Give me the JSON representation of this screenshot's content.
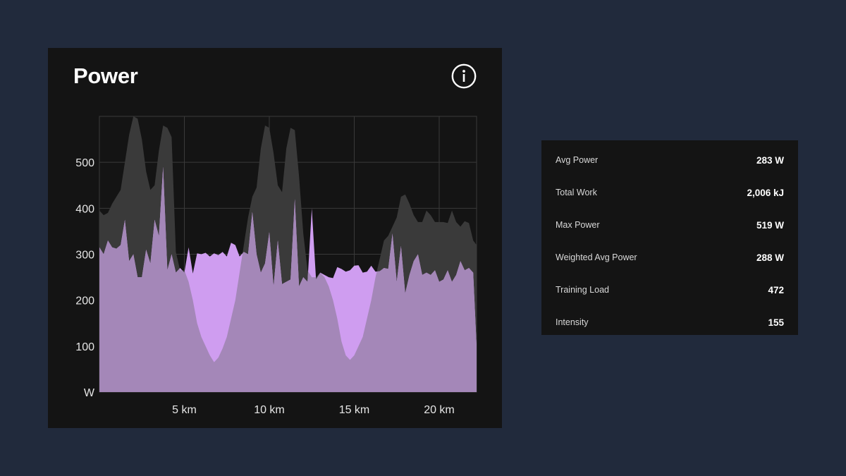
{
  "card": {
    "title": "Power"
  },
  "icons": {
    "info": "info-icon"
  },
  "colors": {
    "background": "#212a3c",
    "card": "#141414",
    "gray_area": "#3a3a3a",
    "purple_area": "#cf9df0",
    "overlap_area": "#a487b8",
    "grid": "#3a3a3a"
  },
  "chart_data": {
    "type": "area",
    "x_unit": "km",
    "y_unit": "W",
    "xlim": [
      0,
      22.2
    ],
    "ylim": [
      0,
      600
    ],
    "x_ticks": [
      5,
      10,
      15,
      20
    ],
    "x_tick_labels": [
      "5 km",
      "10 km",
      "15 km",
      "20 km"
    ],
    "y_ticks": [
      100,
      200,
      300,
      400,
      500
    ],
    "y_tick_labels": [
      "100",
      "200",
      "300",
      "400",
      "500"
    ],
    "y_origin_label": "W",
    "grid": true,
    "series": [
      {
        "x": [
          0,
          0.25,
          0.5,
          0.75,
          1.0,
          1.25,
          1.5,
          1.75,
          2.0,
          2.25,
          2.5,
          2.75,
          3.0,
          3.25,
          3.5,
          3.75,
          4.0,
          4.25,
          4.5,
          4.75,
          5.0,
          5.25,
          5.5,
          5.75,
          6.0,
          6.25,
          6.5,
          6.75,
          7.0,
          7.25,
          7.5,
          7.75,
          8.0,
          8.25,
          8.5,
          8.75,
          9.0,
          9.25,
          9.5,
          9.75,
          10.0,
          10.25,
          10.5,
          10.75,
          11.0,
          11.25,
          11.5,
          11.75,
          12.0,
          12.25,
          12.5,
          12.75,
          13.0,
          13.25,
          13.5,
          13.75,
          14.0,
          14.25,
          14.5,
          14.75,
          15.0,
          15.25,
          15.5,
          15.75,
          16.0,
          16.25,
          16.5,
          16.75,
          17.0,
          17.25,
          17.5,
          17.75,
          18.0,
          18.25,
          18.5,
          18.75,
          19.0,
          19.25,
          19.5,
          19.75,
          20.0,
          20.25,
          20.5,
          20.75,
          21.0,
          21.25,
          21.5,
          21.75,
          22.0,
          22.2
        ],
        "values": [
          395,
          385,
          390,
          410,
          425,
          440,
          500,
          560,
          600,
          595,
          550,
          480,
          440,
          450,
          525,
          580,
          575,
          555,
          305,
          265,
          265,
          240,
          200,
          150,
          120,
          100,
          80,
          65,
          75,
          95,
          120,
          160,
          200,
          260,
          320,
          380,
          425,
          445,
          530,
          580,
          575,
          520,
          450,
          435,
          530,
          575,
          570,
          470,
          345,
          265,
          250,
          250,
          260,
          250,
          230,
          200,
          160,
          110,
          80,
          70,
          80,
          100,
          120,
          160,
          200,
          250,
          290,
          330,
          340,
          360,
          380,
          425,
          430,
          410,
          385,
          370,
          370,
          395,
          385,
          370,
          370,
          370,
          368,
          395,
          370,
          360,
          372,
          368,
          330,
          320
        ],
        "color": "#3a3a3a"
      },
      {
        "x": [
          0,
          0.25,
          0.5,
          0.75,
          1.0,
          1.25,
          1.5,
          1.75,
          2.0,
          2.25,
          2.5,
          2.75,
          3.0,
          3.25,
          3.5,
          3.75,
          4.0,
          4.25,
          4.5,
          4.75,
          5.0,
          5.25,
          5.5,
          5.75,
          6.0,
          6.25,
          6.5,
          6.75,
          7.0,
          7.25,
          7.5,
          7.75,
          8.0,
          8.25,
          8.5,
          8.75,
          9.0,
          9.25,
          9.5,
          9.75,
          10.0,
          10.25,
          10.5,
          10.75,
          11.0,
          11.25,
          11.5,
          11.75,
          12.0,
          12.25,
          12.5,
          12.75,
          13.0,
          13.25,
          13.5,
          13.75,
          14.0,
          14.25,
          14.5,
          14.75,
          15.0,
          15.25,
          15.5,
          15.75,
          16.0,
          16.25,
          16.5,
          16.75,
          17.0,
          17.25,
          17.5,
          17.75,
          18.0,
          18.25,
          18.5,
          18.75,
          19.0,
          19.25,
          19.5,
          19.75,
          20.0,
          20.25,
          20.5,
          20.75,
          21.0,
          21.25,
          21.5,
          21.75,
          22.0,
          22.2
        ],
        "values": [
          315,
          300,
          330,
          315,
          312,
          320,
          375,
          285,
          300,
          250,
          250,
          310,
          280,
          375,
          340,
          490,
          265,
          300,
          260,
          270,
          260,
          315,
          258,
          302,
          300,
          303,
          295,
          302,
          298,
          305,
          295,
          325,
          320,
          295,
          305,
          300,
          392,
          300,
          260,
          280,
          348,
          230,
          330,
          235,
          240,
          245,
          420,
          230,
          250,
          240,
          400,
          245,
          260,
          255,
          250,
          248,
          272,
          268,
          262,
          265,
          275,
          276,
          260,
          262,
          275,
          262,
          263,
          270,
          268,
          345,
          240,
          318,
          215,
          255,
          285,
          300,
          255,
          260,
          255,
          265,
          240,
          245,
          265,
          240,
          255,
          285,
          265,
          270,
          260,
          100
        ],
        "color": "#cf9df0"
      }
    ]
  },
  "stats": [
    {
      "label": "Avg Power",
      "value": "283 W"
    },
    {
      "label": "Total Work",
      "value": "2,006 kJ"
    },
    {
      "label": "Max Power",
      "value": "519 W"
    },
    {
      "label": "Weighted Avg Power",
      "value": "288 W"
    },
    {
      "label": "Training Load",
      "value": "472"
    },
    {
      "label": "Intensity",
      "value": "155"
    }
  ]
}
